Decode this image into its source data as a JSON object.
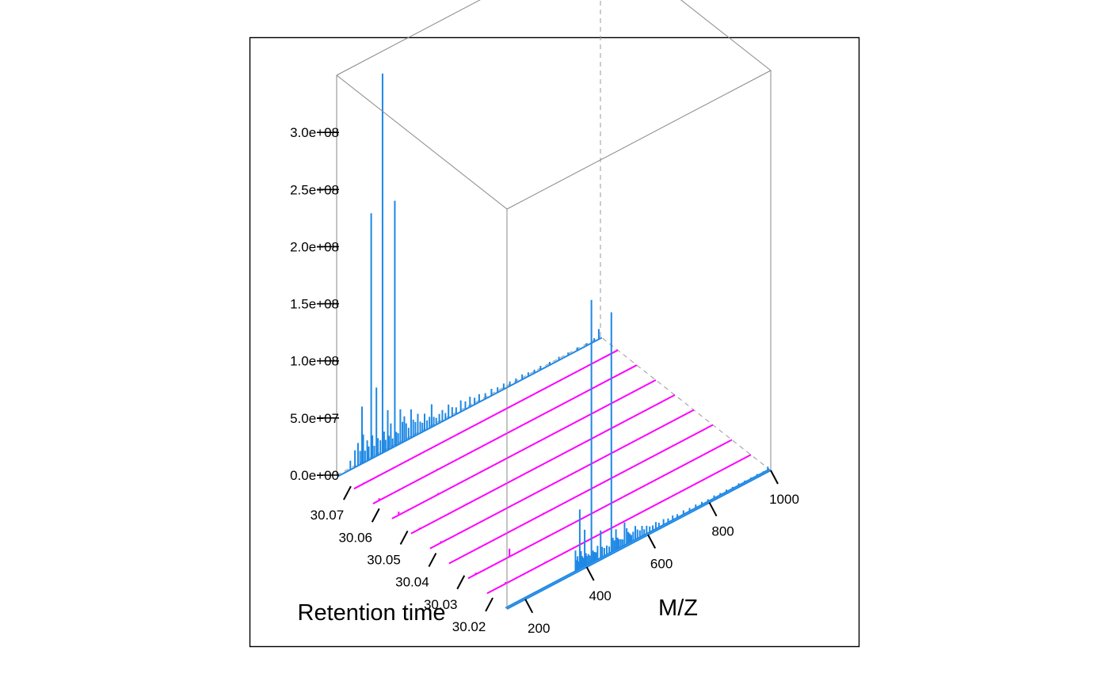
{
  "chart_data": {
    "type": "line",
    "projection": "3d-stacked-spectra",
    "xlabel": "M/Z",
    "ylabel": "Retention time",
    "zlabel": "",
    "x_ticks": [
      "200",
      "400",
      "600",
      "800",
      "1000"
    ],
    "y_ticks": [
      "30.02",
      "30.03",
      "30.04",
      "30.05",
      "30.06",
      "30.07"
    ],
    "z_ticks": [
      "0.0e+00",
      "5.0e+07",
      "1.0e+08",
      "1.5e+08",
      "2.0e+08",
      "2.5e+08",
      "3.0e+08"
    ],
    "xlim": [
      140,
      1000
    ],
    "ylim": [
      30.015,
      30.075
    ],
    "zlim": [
      0,
      350000000
    ],
    "grid": false,
    "legend": "none",
    "colors": {
      "ms1": "#1e88e5",
      "ms2": "#ff00ff",
      "box": "#888888",
      "frame": "#000000"
    },
    "series": [
      {
        "level": "MS1",
        "retention_time": 30.0155,
        "peaks": [
          [
            368,
            18000000
          ],
          [
            372,
            9000000
          ],
          [
            375,
            12000000
          ],
          [
            378,
            7000000
          ],
          [
            382,
            52000000
          ],
          [
            386,
            15000000
          ],
          [
            390,
            10000000
          ],
          [
            394,
            8000000
          ],
          [
            398,
            32000000
          ],
          [
            402,
            11000000
          ],
          [
            405,
            8000000
          ],
          [
            410,
            9000000
          ],
          [
            415,
            7000000
          ],
          [
            420,
            230000000
          ],
          [
            425,
            10000000
          ],
          [
            430,
            8000000
          ],
          [
            435,
            7000000
          ],
          [
            440,
            12000000
          ],
          [
            450,
            24000000
          ],
          [
            455,
            9000000
          ],
          [
            462,
            7000000
          ],
          [
            470,
            8000000
          ],
          [
            478,
            6000000
          ],
          [
            485,
            210000000
          ],
          [
            490,
            12000000
          ],
          [
            495,
            9000000
          ],
          [
            500,
            18000000
          ],
          [
            505,
            10000000
          ],
          [
            510,
            8000000
          ],
          [
            516,
            7000000
          ],
          [
            522,
            6000000
          ],
          [
            528,
            20000000
          ],
          [
            535,
            14000000
          ],
          [
            540,
            10000000
          ],
          [
            545,
            8000000
          ],
          [
            550,
            6000000
          ],
          [
            556,
            8000000
          ],
          [
            563,
            12000000
          ],
          [
            570,
            8000000
          ],
          [
            578,
            6000000
          ],
          [
            585,
            9000000
          ],
          [
            592,
            5000000
          ],
          [
            600,
            7000000
          ],
          [
            610,
            5000000
          ],
          [
            620,
            4500000
          ],
          [
            630,
            6000000
          ],
          [
            640,
            4000000
          ],
          [
            655,
            5000000
          ],
          [
            670,
            3500000
          ],
          [
            685,
            4000000
          ],
          [
            700,
            3000000
          ],
          [
            720,
            3500000
          ],
          [
            740,
            2800000
          ],
          [
            760,
            3000000
          ],
          [
            780,
            2500000
          ],
          [
            800,
            2000000
          ],
          [
            820,
            2500000
          ],
          [
            840,
            1800000
          ],
          [
            860,
            2000000
          ],
          [
            880,
            1500000
          ],
          [
            900,
            1800000
          ],
          [
            920,
            1400000
          ],
          [
            940,
            1200000
          ],
          [
            960,
            1500000
          ],
          [
            980,
            1000000
          ],
          [
            995,
            3000000
          ]
        ]
      },
      {
        "level": "MS2",
        "retention_time": 30.022,
        "peaks": [
          [
            200,
            1500000
          ],
          [
            330,
            1000000
          ],
          [
            392,
            800000
          ]
        ]
      },
      {
        "level": "MS2",
        "retention_time": 30.0287,
        "peaks": [
          [
            165,
            1500000
          ],
          [
            275,
            7000000
          ],
          [
            398,
            900000
          ]
        ]
      },
      {
        "level": "MS2",
        "retention_time": 30.0354,
        "peaks": [
          [
            240,
            800000
          ],
          [
            448,
            900000
          ]
        ]
      },
      {
        "level": "MS2",
        "retention_time": 30.0421,
        "peaks": [
          [
            175,
            1500000
          ],
          [
            236,
            700000
          ]
        ]
      },
      {
        "level": "MS2",
        "retention_time": 30.0488,
        "peaks": [
          [
            168,
            1200000
          ],
          [
            320,
            900000
          ],
          [
            480,
            700000
          ]
        ]
      },
      {
        "level": "MS2",
        "retention_time": 30.0555,
        "peaks": [
          [
            162,
            3000000
          ],
          [
            290,
            1200000
          ],
          [
            520,
            600000
          ]
        ]
      },
      {
        "level": "MS2",
        "retention_time": 30.0622,
        "peaks": [
          [
            160,
            2000000
          ],
          [
            350,
            1000000
          ]
        ]
      },
      {
        "level": "MS2",
        "retention_time": 30.0689,
        "peaks": [
          [
            172,
            900000
          ],
          [
            480,
            600000
          ]
        ]
      },
      {
        "level": "MS1",
        "retention_time": 30.0745,
        "peaks": [
          [
            180,
            8000000
          ],
          [
            195,
            15000000
          ],
          [
            205,
            20000000
          ],
          [
            212,
            12000000
          ],
          [
            218,
            50000000
          ],
          [
            222,
            25000000
          ],
          [
            228,
            10000000
          ],
          [
            235,
            18000000
          ],
          [
            240,
            12000000
          ],
          [
            248,
            215000000
          ],
          [
            252,
            20000000
          ],
          [
            258,
            10000000
          ],
          [
            265,
            60000000
          ],
          [
            270,
            15000000
          ],
          [
            278,
            12000000
          ],
          [
            285,
            332000000
          ],
          [
            290,
            18000000
          ],
          [
            295,
            10000000
          ],
          [
            302,
            35000000
          ],
          [
            306,
            12000000
          ],
          [
            312,
            22000000
          ],
          [
            318,
            8000000
          ],
          [
            325,
            215000000
          ],
          [
            330,
            12000000
          ],
          [
            336,
            10000000
          ],
          [
            343,
            30000000
          ],
          [
            350,
            18000000
          ],
          [
            356,
            22000000
          ],
          [
            362,
            15000000
          ],
          [
            370,
            10000000
          ],
          [
            378,
            25000000
          ],
          [
            385,
            15000000
          ],
          [
            392,
            12000000
          ],
          [
            400,
            18000000
          ],
          [
            408,
            10000000
          ],
          [
            415,
            8000000
          ],
          [
            422,
            15000000
          ],
          [
            430,
            8000000
          ],
          [
            438,
            10000000
          ],
          [
            445,
            20000000
          ],
          [
            452,
            8000000
          ],
          [
            460,
            6000000
          ],
          [
            470,
            8000000
          ],
          [
            480,
            10000000
          ],
          [
            490,
            6000000
          ],
          [
            500,
            12000000
          ],
          [
            512,
            8000000
          ],
          [
            525,
            6000000
          ],
          [
            540,
            10000000
          ],
          [
            555,
            7000000
          ],
          [
            570,
            9000000
          ],
          [
            585,
            6000000
          ],
          [
            600,
            7000000
          ],
          [
            620,
            5000000
          ],
          [
            640,
            6000000
          ],
          [
            660,
            4500000
          ],
          [
            680,
            5000000
          ],
          [
            700,
            4000000
          ],
          [
            720,
            3800000
          ],
          [
            740,
            4500000
          ],
          [
            760,
            3500000
          ],
          [
            780,
            3000000
          ],
          [
            800,
            3500000
          ],
          [
            830,
            2800000
          ],
          [
            860,
            3000000
          ],
          [
            890,
            2500000
          ],
          [
            920,
            2800000
          ],
          [
            950,
            2200000
          ],
          [
            975,
            3000000
          ],
          [
            990,
            9000000
          ]
        ]
      }
    ]
  }
}
